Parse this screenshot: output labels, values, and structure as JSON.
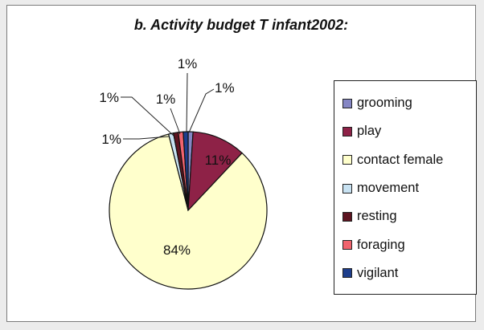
{
  "chart_data": {
    "type": "pie",
    "title": "b. Activity budget T infant2002:",
    "slices": [
      {
        "label": "grooming",
        "value": 1,
        "data_label": "1%",
        "color": "#8586c4"
      },
      {
        "label": "play",
        "value": 11,
        "data_label": "11%",
        "color": "#8e2247"
      },
      {
        "label": "contact female",
        "value": 84,
        "data_label": "84%",
        "color": "#ffffcc"
      },
      {
        "label": "movement",
        "value": 1,
        "data_label": "1%",
        "color": "#c8e2f2"
      },
      {
        "label": "resting",
        "value": 1,
        "data_label": "1%",
        "color": "#5d1420"
      },
      {
        "label": "foraging",
        "value": 1,
        "data_label": "1%",
        "color": "#f0636d"
      },
      {
        "label": "vigilant",
        "value": 1,
        "data_label": "1%",
        "color": "#1e3e8c"
      }
    ],
    "start_angle": "12 o'clock",
    "direction": "clockwise",
    "legend_position": "right"
  }
}
